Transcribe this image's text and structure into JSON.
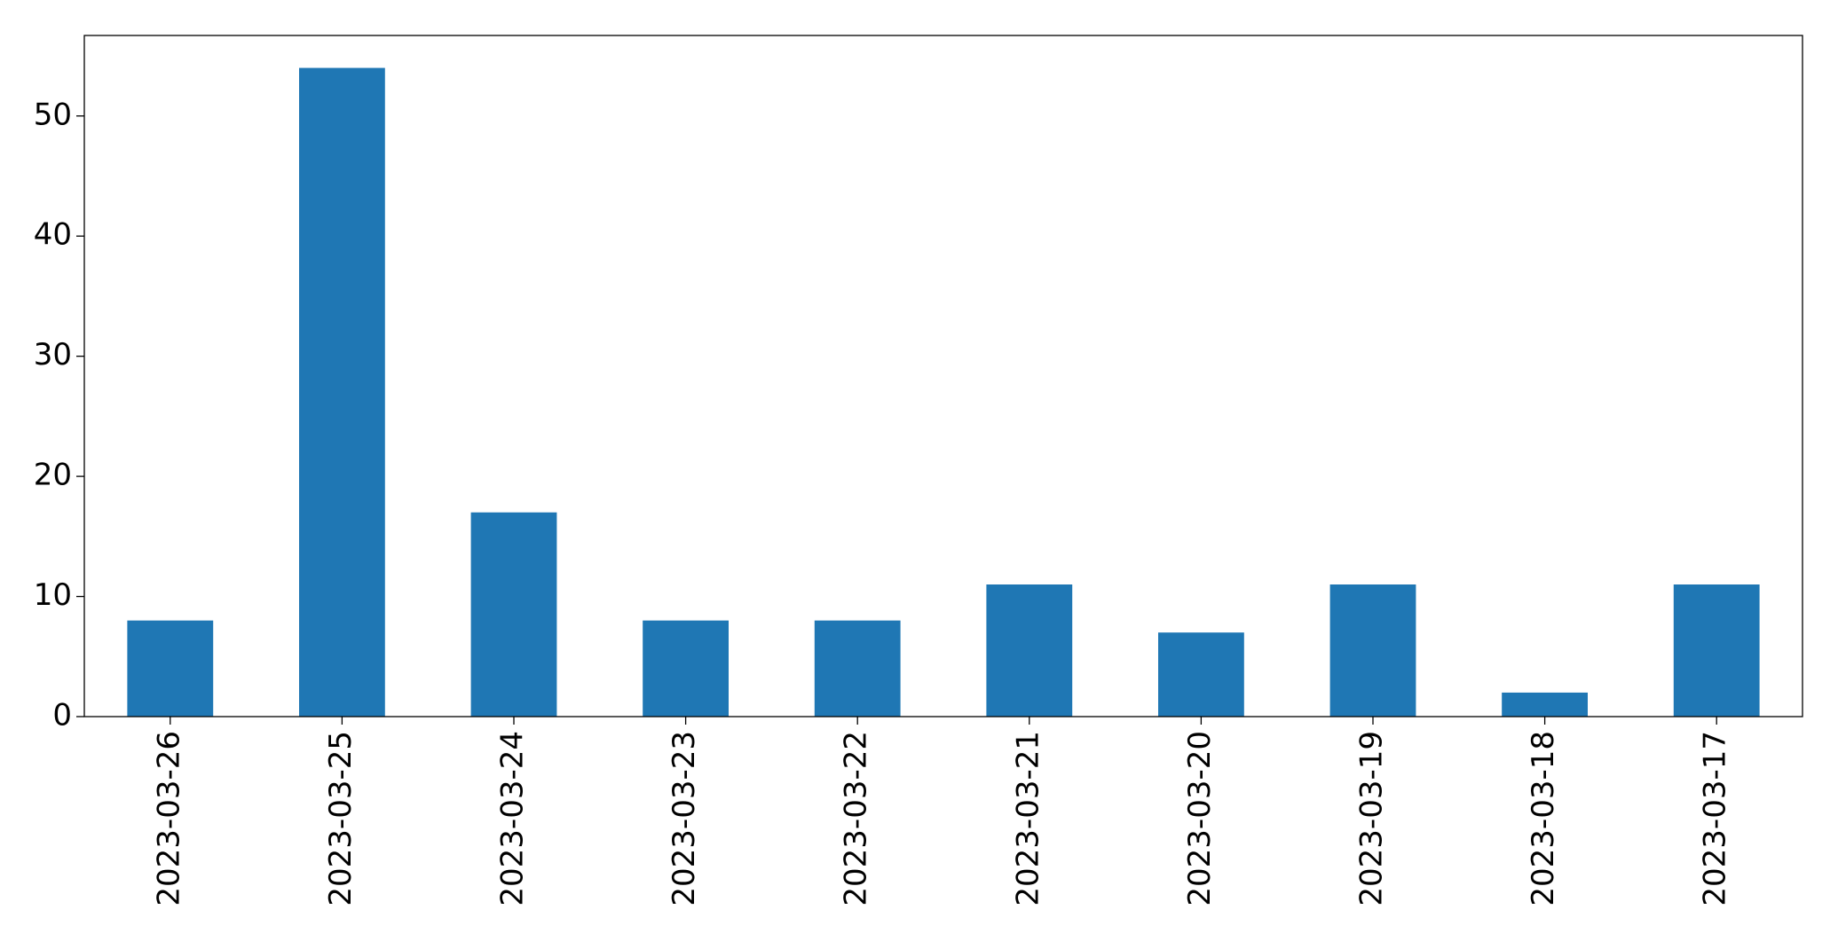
{
  "chart_data": {
    "type": "bar",
    "categories": [
      "2023-03-26",
      "2023-03-25",
      "2023-03-24",
      "2023-03-23",
      "2023-03-22",
      "2023-03-21",
      "2023-03-20",
      "2023-03-19",
      "2023-03-18",
      "2023-03-17"
    ],
    "values": [
      8,
      54,
      17,
      8,
      8,
      11,
      7,
      11,
      2,
      11
    ],
    "color": "#1f77b4",
    "ylim": [
      0,
      56.7
    ],
    "yticks": [
      0,
      10,
      20,
      30,
      40,
      50
    ],
    "grid": false
  }
}
